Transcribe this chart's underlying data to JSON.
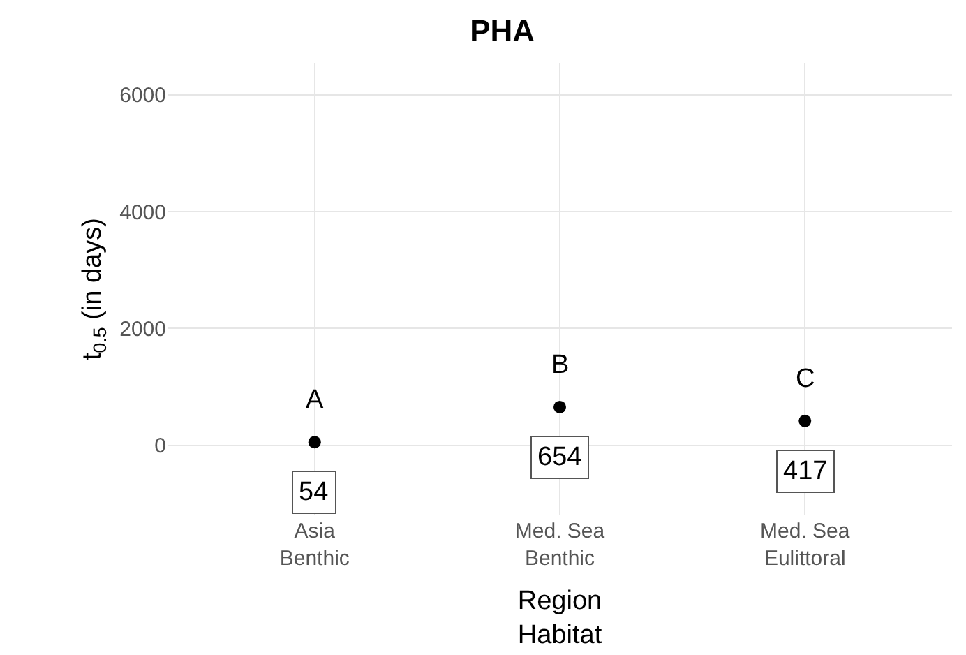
{
  "chart_data": {
    "type": "scatter",
    "title": "PHA",
    "xlabel": "Region\nHabitat",
    "ylabel": "t$_{0.5}$ (in days)",
    "categories": [
      "Asia\nBenthic",
      "Med. Sea\nBenthic",
      "Med. Sea\nEulittoral"
    ],
    "values": [
      54,
      654,
      417
    ],
    "value_labels": [
      "54",
      "654",
      "417"
    ],
    "color": "#000000",
    "marker": "circle",
    "ylim": [
      -1200,
      6550
    ],
    "yticks": [
      0,
      2000,
      4000,
      6000
    ],
    "grid": true,
    "annotations": [
      "A",
      "B",
      "C"
    ]
  }
}
